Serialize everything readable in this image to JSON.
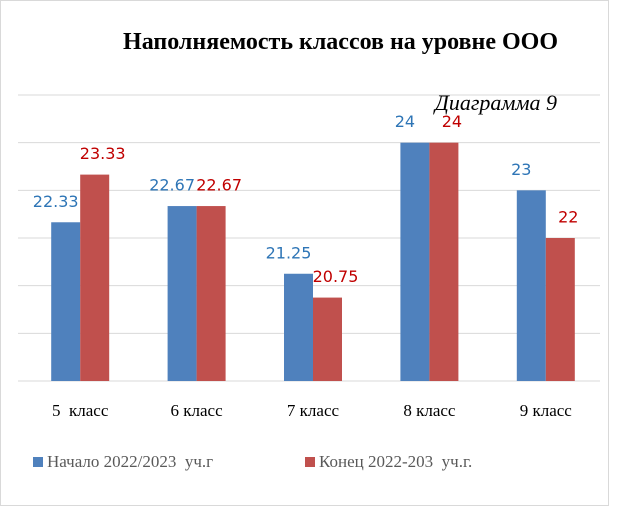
{
  "chart_data": {
    "type": "bar",
    "title": "Наполняемость классов на уровне ООО",
    "subtitle": "Диаграмма 9",
    "categories": [
      "5  класс",
      "6 класс",
      "7 класс",
      "8 класс",
      "9 класс"
    ],
    "series": [
      {
        "name": "Начало 2022/2023  уч.г",
        "color": "#4f81bd",
        "label_color": "#2e75b6",
        "values": [
          22.33,
          22.67,
          21.25,
          24,
          23
        ]
      },
      {
        "name": "Конец 2022-203  уч.г.",
        "color": "#c0504d",
        "label_color": "#c00000",
        "values": [
          23.33,
          22.67,
          20.75,
          24,
          22
        ]
      }
    ],
    "ylim": [
      19,
      25
    ],
    "yticks": [
      19,
      20,
      21,
      22,
      23,
      24,
      25
    ],
    "grid": true,
    "legend": "bottom-left"
  }
}
